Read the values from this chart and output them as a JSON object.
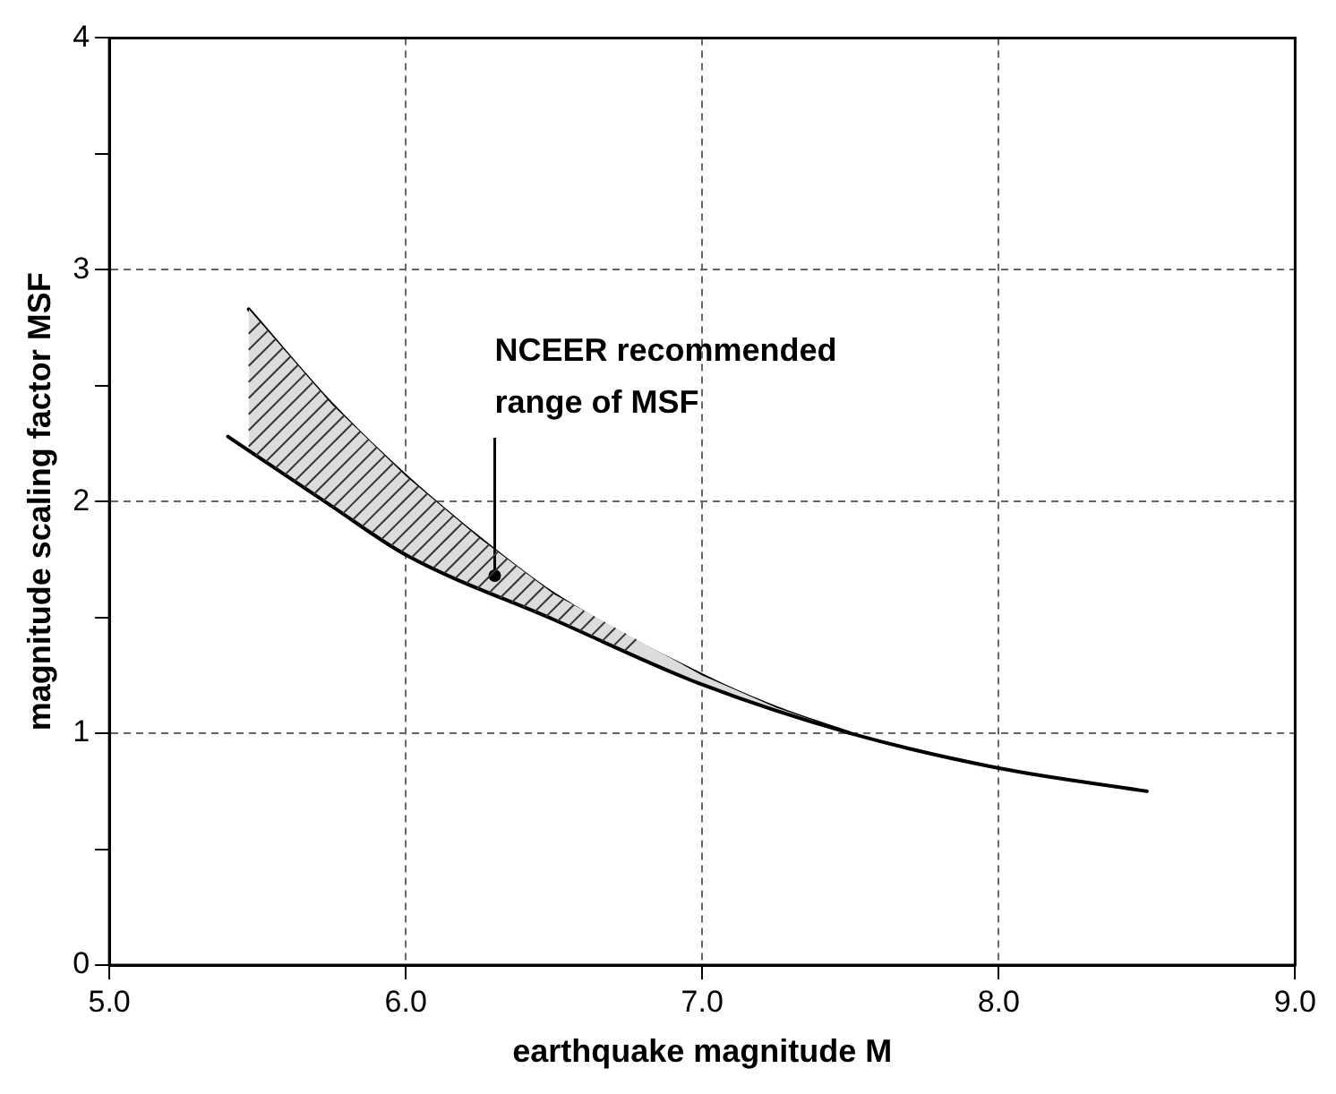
{
  "chart_data": {
    "type": "line",
    "xlabel": "earthquake magnitude M",
    "ylabel": "magnitude scaling factor MSF",
    "xlim": [
      5,
      9
    ],
    "xticks": [
      {
        "value": 5,
        "label": "5.0"
      },
      {
        "value": 6,
        "label": "6.0"
      },
      {
        "value": 7,
        "label": "7.0"
      },
      {
        "value": 8,
        "label": "8.0"
      },
      {
        "value": 9,
        "label": "9.0"
      }
    ],
    "ylim": [
      0,
      4
    ],
    "yticks": [
      0,
      {
        "value": 0.5,
        "label": null
      },
      1,
      {
        "value": 1.5,
        "label": null
      },
      2,
      {
        "value": 2.5,
        "label": null
      },
      3,
      {
        "value": 3.5,
        "label": null
      },
      4
    ],
    "grid": true,
    "line_style": "solid",
    "series": [
      {
        "color": "#000000",
        "x": [
          5.4,
          5.75,
          6.0,
          6.5,
          7.0,
          7.5,
          8.0,
          8.5
        ],
        "values": [
          2.28,
          1.98,
          1.77,
          1.49,
          1.21,
          1.0,
          0.85,
          0.75
        ]
      },
      {
        "color": "#000000",
        "x": [
          5.47,
          5.75,
          6.0,
          6.25,
          6.5,
          7.0,
          7.25,
          7.5
        ],
        "values": [
          2.83,
          2.42,
          2.11,
          1.84,
          1.6,
          1.25,
          1.11,
          1.0
        ],
        "lower": [
          2.22,
          1.98,
          1.77,
          1.62,
          1.49,
          1.21,
          1.1,
          1.0
        ],
        "upper": [
          2.83,
          2.42,
          2.11,
          1.84,
          1.6,
          1.25,
          1.11,
          1.0
        ]
      }
    ],
    "annotations": [
      {
        "text": "NCEER recommended range of MSF",
        "x": 6.3,
        "y": 1.68
      }
    ]
  }
}
